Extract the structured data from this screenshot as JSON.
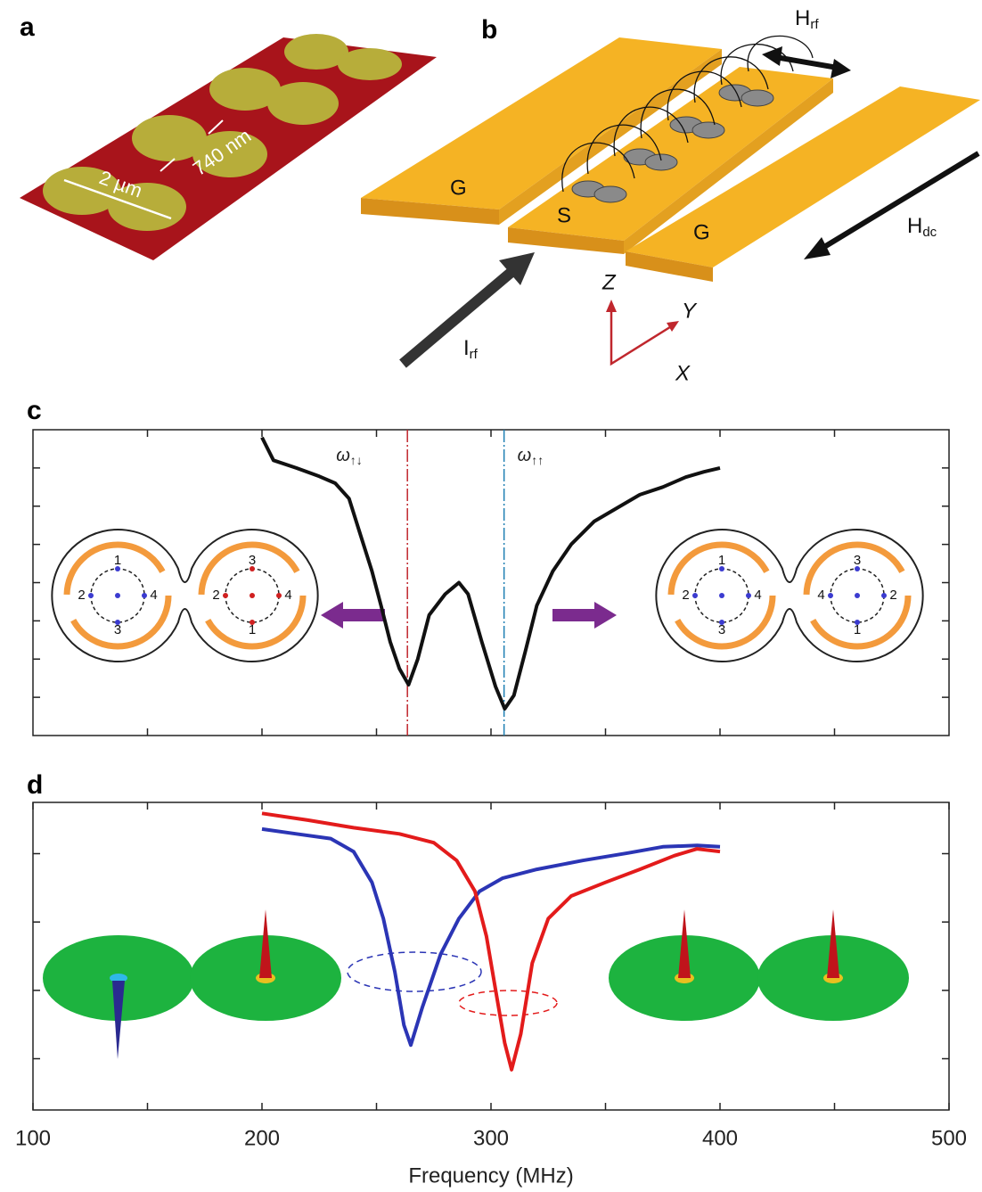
{
  "panel_labels": [
    "a",
    "b",
    "c",
    "d"
  ],
  "panel_a": {
    "length_label": "2 µm",
    "gap_label": "740 nm"
  },
  "panel_b": {
    "ground_left": "G",
    "signal": "S",
    "ground_right": "G",
    "h_rf": {
      "main": "H",
      "sub": "rf"
    },
    "h_dc": {
      "main": "H",
      "sub": "dc"
    },
    "i_rf": {
      "main": "I",
      "sub": "rf"
    },
    "axes": [
      "Z",
      "Y",
      "X"
    ]
  },
  "chart_data": [
    {
      "type": "line",
      "xlim": [
        100,
        500
      ],
      "xticks": [
        150,
        200,
        250,
        300,
        350,
        400,
        450
      ],
      "ylim": [
        0,
        8
      ],
      "yticks": [
        1,
        2,
        3,
        4,
        5,
        6,
        7
      ],
      "series": [
        {
          "color": "#111111",
          "x": [
            200,
            205,
            215,
            225,
            232,
            238,
            243,
            248,
            252,
            256,
            260,
            264,
            268,
            273,
            280,
            286,
            290,
            296,
            302,
            306,
            310,
            315,
            320,
            327,
            335,
            345,
            355,
            365,
            375,
            385,
            393,
            400
          ],
          "values": [
            7.8,
            7.2,
            7.0,
            6.78,
            6.6,
            6.2,
            5.25,
            4.3,
            3.4,
            2.45,
            1.75,
            1.33,
            2.0,
            3.15,
            3.7,
            4.0,
            3.7,
            2.45,
            1.28,
            0.7,
            1.05,
            2.2,
            3.4,
            4.3,
            5.0,
            5.6,
            5.95,
            6.3,
            6.5,
            6.76,
            6.9,
            7.0
          ]
        }
      ],
      "markers": [
        {
          "x": 263.5,
          "color": "#c0272d",
          "label": {
            "main": "ω",
            "sub": "↑↓"
          }
        },
        {
          "x": 305.7,
          "color": "#1f7fb3",
          "label": {
            "main": "ω",
            "sub": "↑↑"
          }
        }
      ],
      "insets": [
        {
          "left": [
            "1",
            "2",
            "4",
            "3"
          ],
          "right": [
            "3",
            "2",
            "4",
            "1"
          ],
          "dot_colors": [
            "#3b3bd0",
            "#d02020"
          ]
        },
        {
          "left": [
            "1",
            "2",
            "4",
            "3"
          ],
          "right": [
            "3",
            "4",
            "2",
            "1"
          ],
          "dot_colors": [
            "#3b3bd0",
            "#3b3bd0"
          ]
        }
      ]
    },
    {
      "type": "line",
      "x_label": "Frequency (MHz)",
      "xlim": [
        100,
        500
      ],
      "xticks": [
        100,
        200,
        300,
        400,
        500
      ],
      "ylim": [
        0,
        4.5
      ],
      "yticks": [
        0.75,
        1.75,
        2.75,
        3.75
      ],
      "series": [
        {
          "color": "#2b35b5",
          "x": [
            200,
            215,
            230,
            240,
            248,
            253,
            258,
            262,
            265,
            270,
            278,
            286,
            295,
            305,
            320,
            340,
            360,
            375,
            390,
            400
          ],
          "values": [
            4.11,
            4.04,
            3.97,
            3.78,
            3.33,
            2.8,
            2.02,
            1.24,
            0.95,
            1.5,
            2.28,
            2.8,
            3.2,
            3.39,
            3.52,
            3.65,
            3.76,
            3.85,
            3.87,
            3.85
          ]
        },
        {
          "color": "#e31b1b",
          "x": [
            200,
            220,
            240,
            260,
            275,
            285,
            293,
            298,
            302,
            306,
            309,
            313,
            318,
            325,
            335,
            350,
            365,
            380,
            390,
            400
          ],
          "values": [
            4.34,
            4.24,
            4.13,
            4.04,
            3.91,
            3.65,
            3.2,
            2.54,
            1.76,
            0.98,
            0.59,
            1.11,
            2.15,
            2.8,
            3.13,
            3.33,
            3.52,
            3.72,
            3.82,
            3.78
          ]
        }
      ]
    }
  ]
}
